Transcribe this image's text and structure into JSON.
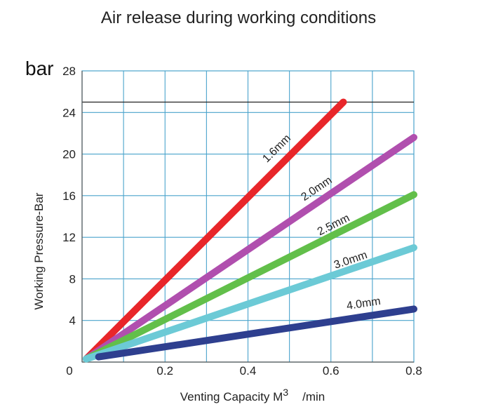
{
  "chart_data": {
    "type": "line",
    "title": "Air release during working conditions",
    "unit_label": "bar",
    "xlabel_prefix": "Venting  Capacity  M",
    "xlabel_sup": "3",
    "xlabel_suffix": "/min",
    "ylabel": "Working Pressure-Bar",
    "xlim": [
      0,
      0.8
    ],
    "ylim": [
      0,
      28
    ],
    "xticks": [
      0.2,
      0.4,
      0.6,
      0.8
    ],
    "xtick_labels": [
      "0.2",
      "0.4",
      "0.6",
      "0.8"
    ],
    "yticks": [
      4,
      8,
      12,
      16,
      20,
      24,
      28
    ],
    "ytick_labels": [
      "4",
      "8",
      "12",
      "16",
      "20",
      "24",
      "28"
    ],
    "zero_label": "0",
    "reference_line": 25,
    "series": [
      {
        "name": "1.6mm",
        "color": "#e8262a",
        "x": [
          0.01,
          0.63
        ],
        "y": [
          0.3,
          25
        ]
      },
      {
        "name": "2.0mm",
        "color": "#b04fae",
        "x": [
          0.01,
          0.8
        ],
        "y": [
          0.3,
          21.6
        ]
      },
      {
        "name": "2.5mm",
        "color": "#62bf4a",
        "x": [
          0.01,
          0.8
        ],
        "y": [
          0.3,
          16.1
        ]
      },
      {
        "name": "3.0mm",
        "color": "#6ccad6",
        "x": [
          0.01,
          0.8
        ],
        "y": [
          0.3,
          11
        ]
      },
      {
        "name": "4.0mm",
        "color": "#2e3f8f",
        "x": [
          0.04,
          0.8
        ],
        "y": [
          0.5,
          5.1
        ]
      }
    ],
    "annotations": [
      {
        "series": "1.6mm",
        "x": 0.475,
        "y": 20.3
      },
      {
        "series": "2.0mm",
        "x": 0.57,
        "y": 16.4
      },
      {
        "series": "2.5mm",
        "x": 0.61,
        "y": 12.9
      },
      {
        "series": "3.0mm",
        "x": 0.65,
        "y": 9.5
      },
      {
        "series": "4.0mm",
        "x": 0.68,
        "y": 5.3
      }
    ]
  }
}
